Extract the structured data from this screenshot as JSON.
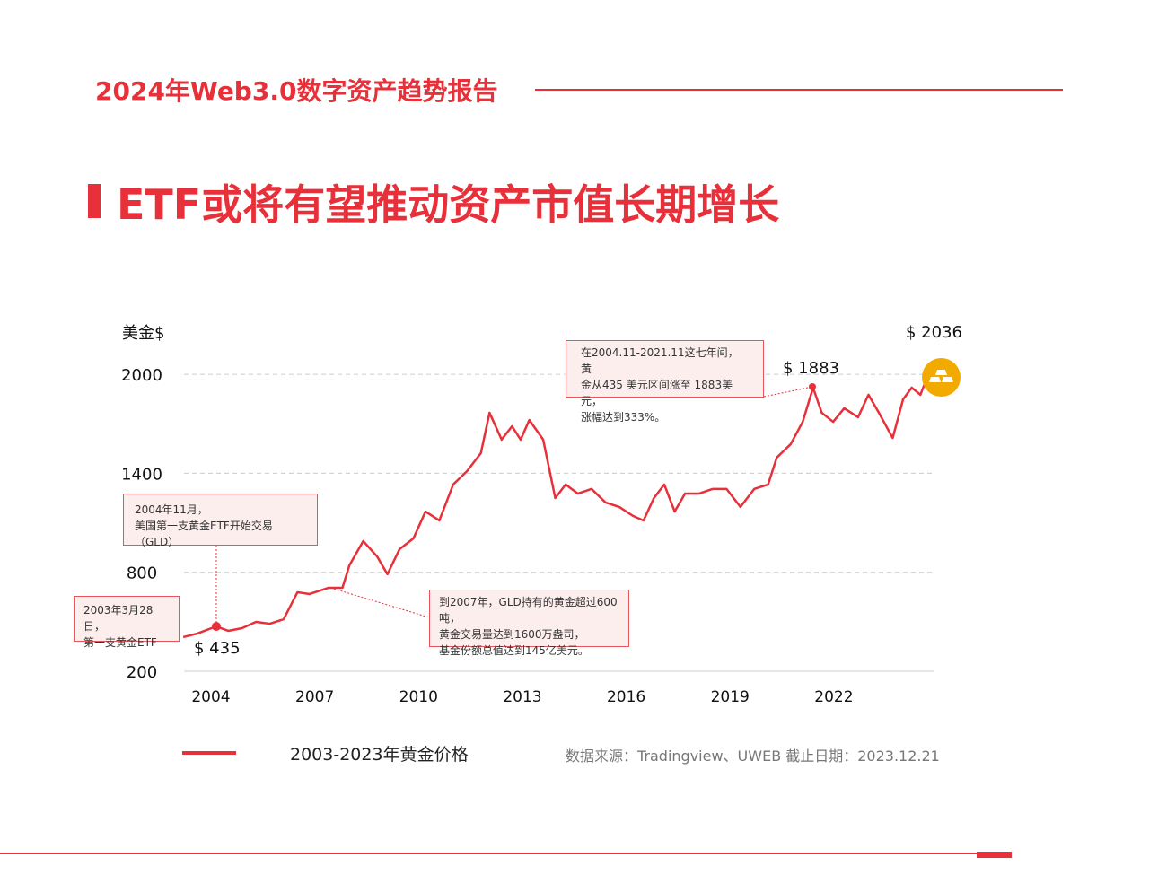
{
  "header": {
    "title": "2024年Web3.0数字资产趋势报告"
  },
  "page_title": "ETF或将有望推动资产市值长期增长",
  "chart_data": {
    "type": "line",
    "ylabel": "美金$",
    "ylim": [
      200,
      2000
    ],
    "yticks": [
      "2000",
      "1400",
      "800",
      "200"
    ],
    "ytick_values": [
      2000,
      1400,
      800,
      200
    ],
    "xticks": [
      "2004",
      "2007",
      "2010",
      "2013",
      "2016",
      "2019",
      "2022"
    ],
    "xtick_values": [
      2004,
      2007,
      2010,
      2013,
      2016,
      2019,
      2022
    ],
    "grid": "horizontal dashed",
    "color": "#e8303a",
    "series": [
      {
        "name": "2003-2023年黄金价格",
        "x": [
          2003.2,
          2003.6,
          2004.15,
          2004.5,
          2004.9,
          2005.3,
          2005.7,
          2006.1,
          2006.5,
          2006.85,
          2007.4,
          2007.8,
          2008.0,
          2008.4,
          2008.8,
          2009.1,
          2009.45,
          2009.85,
          2010.2,
          2010.6,
          2011.0,
          2011.4,
          2011.8,
          2012.05,
          2012.4,
          2012.7,
          2012.95,
          2013.2,
          2013.6,
          2013.95,
          2014.25,
          2014.6,
          2015.0,
          2015.4,
          2015.8,
          2016.2,
          2016.5,
          2016.8,
          2017.1,
          2017.4,
          2017.7,
          2018.1,
          2018.5,
          2018.9,
          2019.3,
          2019.7,
          2020.1,
          2020.35,
          2020.75,
          2021.1,
          2021.4,
          2021.65,
          2021.98,
          2022.3,
          2022.7,
          2023.0,
          2023.3,
          2023.7,
          2024.0,
          2024.25,
          2024.5,
          2024.7
        ],
        "y": [
          407,
          428,
          472,
          445,
          461,
          499,
          488,
          515,
          679,
          668,
          706,
          706,
          842,
          989,
          896,
          788,
          940,
          1005,
          1168,
          1114,
          1332,
          1413,
          1522,
          1767,
          1604,
          1685,
          1604,
          1723,
          1604,
          1250,
          1332,
          1277,
          1305,
          1223,
          1196,
          1141,
          1114,
          1250,
          1332,
          1168,
          1277,
          1277,
          1305,
          1305,
          1196,
          1305,
          1332,
          1495,
          1576,
          1712,
          1919,
          1767,
          1712,
          1794,
          1740,
          1876,
          1767,
          1614,
          1848,
          1919,
          1876,
          1984
        ]
      }
    ],
    "annotations": [
      {
        "text": "2003年3月28日，\n第一支黄金ETF"
      },
      {
        "text": "2004年11月，\n美国第一支黄金ETF开始交易（GLD）"
      },
      {
        "text": "到2007年，GLD持有的黄金超过600吨，\n黄金交易量达到1600万盎司，\n基金份额总值达到145亿美元。"
      },
      {
        "text": "在2004.11-2021.11这七年间，黄\n金从435 美元区间涨至 1883美元，\n涨幅达到333%。"
      }
    ],
    "point_labels": {
      "start": "$ 435",
      "peak": "$ 1883",
      "latest": "$ 2036"
    },
    "legend": {
      "label": "2003-2023年黄金价格",
      "position": "bottom-left"
    }
  },
  "source": "数据来源：Tradingview、UWEB   截止日期：2023.12.21",
  "icons": {
    "latest": "gold-bars-icon"
  }
}
